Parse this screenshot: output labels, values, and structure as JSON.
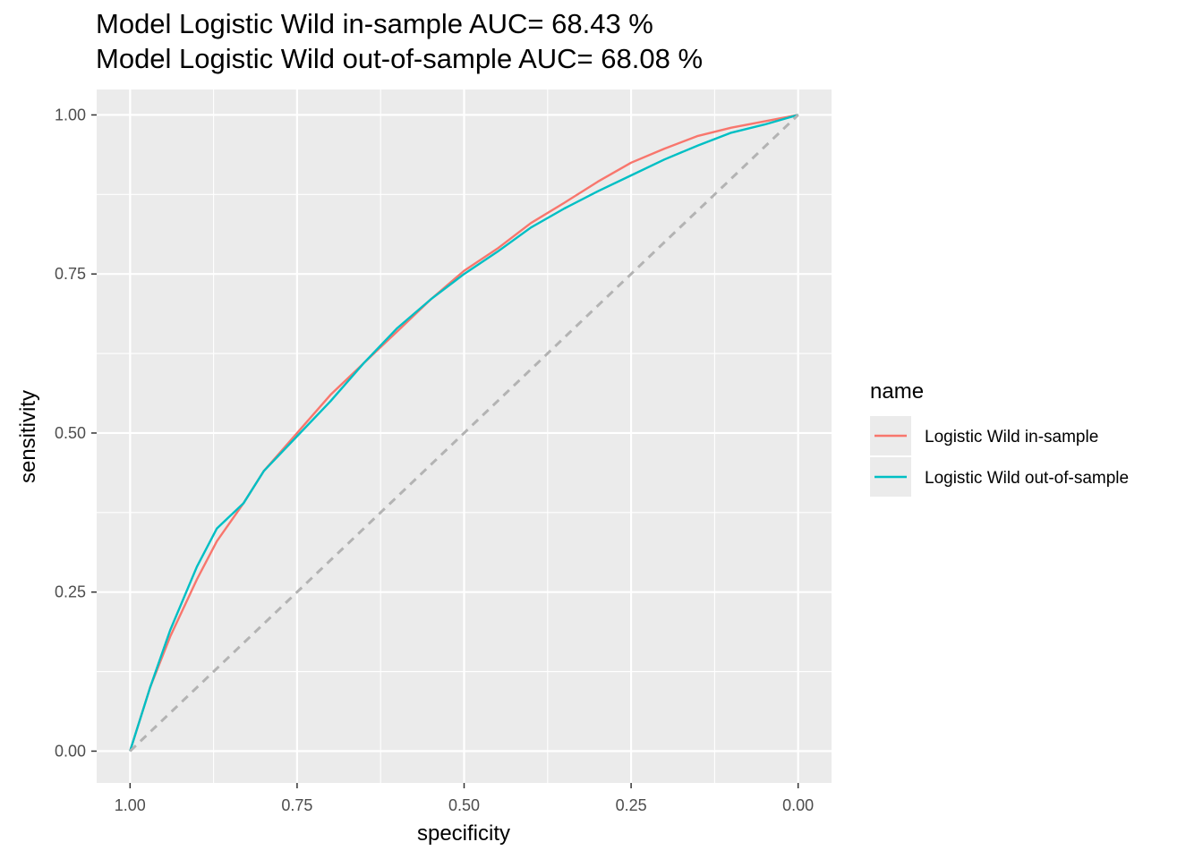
{
  "chart_data": {
    "type": "line",
    "title": [
      "Model Logistic Wild in-sample AUC= 68.43 %",
      "Model Logistic Wild out-of-sample AUC= 68.08 %"
    ],
    "xlabel": "specificity",
    "ylabel": "sensitivity",
    "x_reversed": true,
    "xlim": [
      1.05,
      -0.05
    ],
    "ylim": [
      -0.05,
      1.04
    ],
    "x_ticks": [
      1.0,
      0.75,
      0.5,
      0.25,
      0.0
    ],
    "x_tick_labels": [
      "1.00",
      "0.75",
      "0.50",
      "0.25",
      "0.00"
    ],
    "y_ticks": [
      0.0,
      0.25,
      0.5,
      0.75,
      1.0
    ],
    "y_tick_labels": [
      "0.00",
      "0.25",
      "0.50",
      "0.75",
      "1.00"
    ],
    "grid": true,
    "legend": {
      "title": "name",
      "placement": "right",
      "entries": [
        "Logistic Wild in-sample",
        "Logistic Wild out-of-sample"
      ]
    },
    "series": [
      {
        "name": "Logistic Wild in-sample",
        "color": "#F8766D",
        "specificity": [
          1.0,
          0.97,
          0.94,
          0.9,
          0.87,
          0.83,
          0.8,
          0.75,
          0.7,
          0.65,
          0.6,
          0.55,
          0.5,
          0.45,
          0.4,
          0.35,
          0.3,
          0.25,
          0.2,
          0.15,
          0.1,
          0.05,
          0.0
        ],
        "sensitivity": [
          0.0,
          0.1,
          0.18,
          0.27,
          0.33,
          0.39,
          0.44,
          0.5,
          0.56,
          0.61,
          0.66,
          0.71,
          0.755,
          0.79,
          0.83,
          0.862,
          0.895,
          0.925,
          0.947,
          0.967,
          0.98,
          0.99,
          1.0
        ]
      },
      {
        "name": "Logistic Wild out-of-sample",
        "color": "#00BFC4",
        "specificity": [
          1.0,
          0.97,
          0.94,
          0.9,
          0.87,
          0.83,
          0.8,
          0.75,
          0.7,
          0.65,
          0.6,
          0.55,
          0.5,
          0.45,
          0.4,
          0.35,
          0.3,
          0.25,
          0.2,
          0.15,
          0.1,
          0.05,
          0.0
        ],
        "sensitivity": [
          0.0,
          0.1,
          0.19,
          0.29,
          0.35,
          0.39,
          0.44,
          0.495,
          0.55,
          0.61,
          0.665,
          0.71,
          0.75,
          0.785,
          0.823,
          0.853,
          0.88,
          0.905,
          0.93,
          0.952,
          0.972,
          0.985,
          1.0
        ]
      },
      {
        "name": "",
        "color": "#b3b3b3",
        "dashed": true,
        "specificity": [
          1.0,
          0.0
        ],
        "sensitivity": [
          0.0,
          1.0
        ]
      }
    ]
  }
}
